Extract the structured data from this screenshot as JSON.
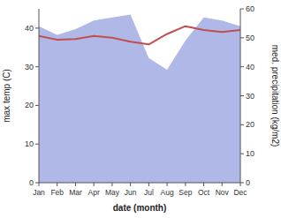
{
  "chart_data": {
    "type": "line",
    "categories": [
      "Jan",
      "Feb",
      "Mar",
      "Apr",
      "May",
      "Jun",
      "Jul",
      "Aug",
      "Sep",
      "Oct",
      "Nov",
      "Dec"
    ],
    "xlabel": "date (month)",
    "ylabel": "max temp (C)",
    "y2label": "med. precipitation (kg/m2)",
    "ylim": [
      0,
      45
    ],
    "yticks": [
      0,
      10,
      20,
      30,
      40
    ],
    "y2lim": [
      0,
      60
    ],
    "y2ticks": [
      0,
      10,
      20,
      30,
      40,
      50,
      60
    ],
    "grid": false,
    "series": [
      {
        "type": "area",
        "axis": "y2",
        "color": "#b0b8e8",
        "values": [
          54,
          51,
          53,
          56,
          57,
          58,
          43,
          39,
          49,
          57,
          56,
          54
        ]
      },
      {
        "type": "line",
        "color": "#c0504d",
        "values": [
          38.0,
          37.0,
          37.2,
          38.0,
          37.5,
          36.5,
          35.8,
          38.5,
          40.5,
          39.5,
          39.0,
          39.5
        ]
      }
    ]
  }
}
